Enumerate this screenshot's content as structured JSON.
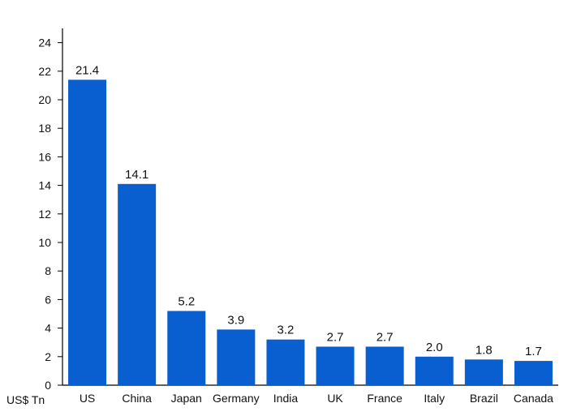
{
  "chart_data": {
    "type": "bar",
    "title": "",
    "xlabel": "",
    "ylabel": "US$ Tn",
    "categories": [
      "US",
      "China",
      "Japan",
      "Germany",
      "India",
      "UK",
      "France",
      "Italy",
      "Brazil",
      "Canada"
    ],
    "values": [
      21.4,
      14.1,
      5.2,
      3.9,
      3.2,
      2.7,
      2.7,
      2.0,
      1.8,
      1.7
    ],
    "data_labels": [
      "21.4",
      "14.1",
      "5.2",
      "3.9",
      "3.2",
      "2.7",
      "2.7",
      "2.0",
      "1.8",
      "1.7"
    ],
    "ylim": [
      0,
      25
    ],
    "yticks": [
      0,
      2,
      4,
      6,
      8,
      10,
      12,
      14,
      16,
      18,
      20,
      22,
      24
    ],
    "grid": false,
    "legend": "none",
    "colors": {
      "bar": "#0a5fd0",
      "axis": "#000000",
      "text": "#111111"
    }
  }
}
